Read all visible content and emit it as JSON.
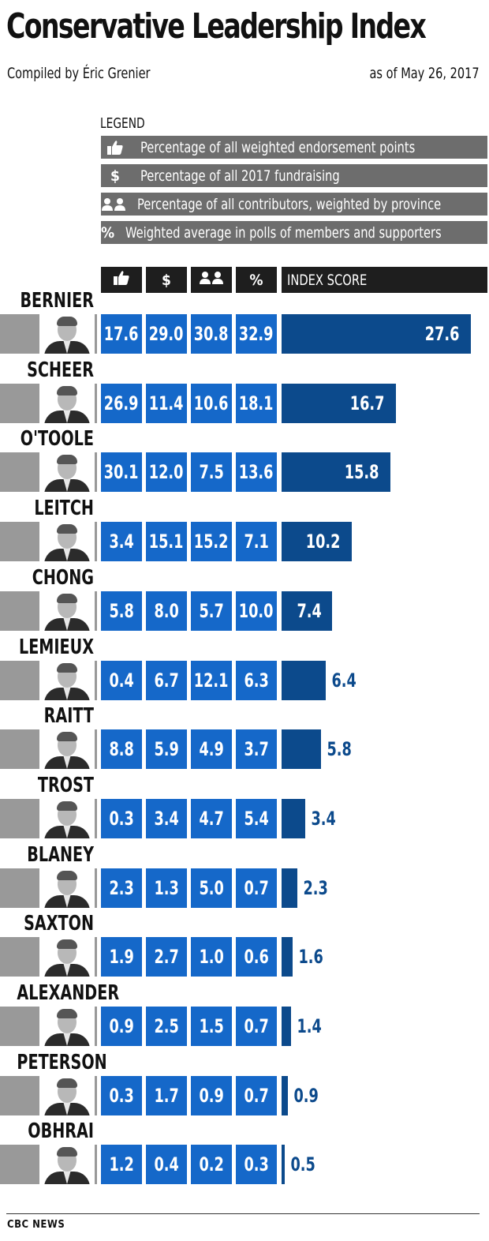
{
  "header": {
    "title": "Conservative Leadership Index",
    "byline": "Compiled by Éric Grenier",
    "as_of": "as of May 26, 2017"
  },
  "legend": {
    "title": "LEGEND",
    "items": [
      {
        "icon": "thumbs-up-icon",
        "symbol": "",
        "label": "Percentage of all weighted endorsement points"
      },
      {
        "icon": "dollar-icon",
        "symbol": "$",
        "label": "Percentage of all 2017 fundraising"
      },
      {
        "icon": "people-icon",
        "symbol": "",
        "label": "Percentage of all contributors, weighted by province"
      },
      {
        "icon": "percent-icon",
        "symbol": "%",
        "label": "Weighted average in polls of members and supporters"
      }
    ]
  },
  "columns": {
    "dollar_symbol": "$",
    "percent_symbol": "%",
    "index_label": "INDEX SCORE"
  },
  "colors": {
    "cell": "#1568c9",
    "index_bar": "#0c4a8c",
    "header": "#1e1e1e",
    "legend_row": "#6d6d6d",
    "photo_band": "#999999"
  },
  "chart_data": {
    "type": "bar",
    "categories": [
      "BERNIER",
      "SCHEER",
      "O'TOOLE",
      "LEITCH",
      "CHONG",
      "LEMIEUX",
      "RAITT",
      "TROST",
      "BLANEY",
      "SAXTON",
      "ALEXANDER",
      "PETERSON",
      "OBHRAI"
    ],
    "columns": [
      {
        "values": [
          "17.6",
          "26.9",
          "30.1",
          "3.4",
          "5.8",
          "0.4",
          "8.8",
          "0.3",
          "2.3",
          "1.9",
          "0.9",
          "0.3",
          "1.2"
        ]
      },
      {
        "values": [
          "29.0",
          "11.4",
          "12.0",
          "15.1",
          "8.0",
          "6.7",
          "5.9",
          "3.4",
          "1.3",
          "2.7",
          "2.5",
          "1.7",
          "0.4"
        ]
      },
      {
        "values": [
          "30.8",
          "10.6",
          "7.5",
          "15.2",
          "5.7",
          "12.1",
          "4.9",
          "4.7",
          "5.0",
          "1.0",
          "1.5",
          "0.9",
          "0.2"
        ]
      },
      {
        "values": [
          "32.9",
          "18.1",
          "13.6",
          "7.1",
          "10.0",
          "6.3",
          "3.7",
          "5.4",
          "0.7",
          "0.6",
          "0.7",
          "0.7",
          "0.3"
        ]
      }
    ],
    "series": [
      {
        "values": [
          27.6,
          16.7,
          15.8,
          10.2,
          7.4,
          6.4,
          5.8,
          3.4,
          2.3,
          1.6,
          1.4,
          0.9,
          0.5
        ]
      }
    ],
    "value_labels": [
      "27.6",
      "16.7",
      "15.8",
      "10.2",
      "7.4",
      "6.4",
      "5.8",
      "3.4",
      "2.3",
      "1.6",
      "1.4",
      "0.9",
      "0.5"
    ],
    "xlim": [
      0,
      28.6
    ]
  },
  "footer": {
    "source": "CBC NEWS"
  }
}
